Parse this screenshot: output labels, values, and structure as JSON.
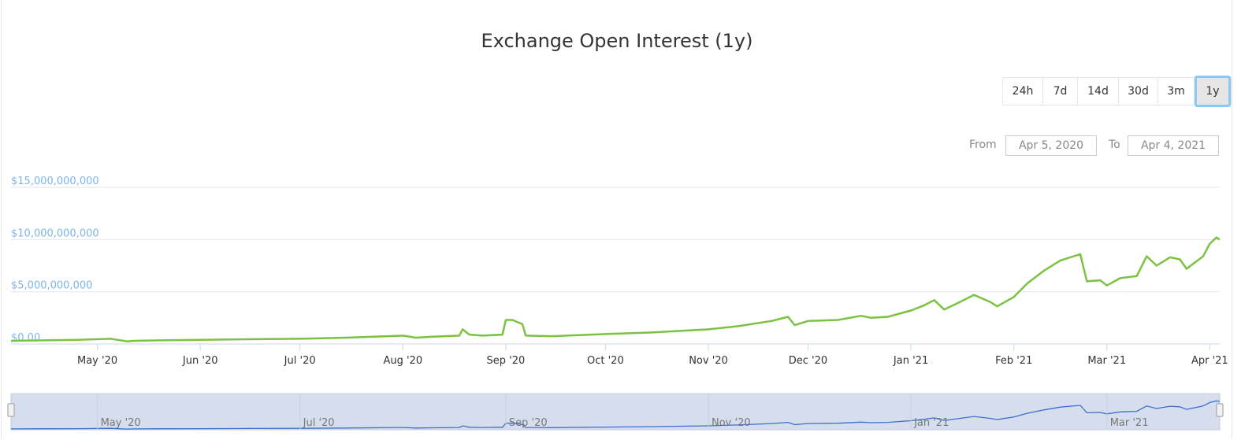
{
  "title": "Exchange Open Interest (1y)",
  "range_buttons": [
    {
      "label": "24h",
      "active": false
    },
    {
      "label": "7d",
      "active": false
    },
    {
      "label": "14d",
      "active": false
    },
    {
      "label": "30d",
      "active": false
    },
    {
      "label": "3m",
      "active": false
    },
    {
      "label": "1y",
      "active": true
    }
  ],
  "date_range": {
    "from_label": "From",
    "from_value": "Apr 5, 2020",
    "to_label": "To",
    "to_value": "Apr 4, 2021"
  },
  "colors": {
    "series_line": "#7cc242",
    "y_tick_text": "#7cb5ec",
    "navigator_line": "#3a6fcf",
    "navigator_fill": "#d6deee",
    "gridline": "#e6e6e6"
  },
  "chart_data": {
    "type": "line",
    "title": "Exchange Open Interest (1y)",
    "xlabel": "",
    "ylabel": "",
    "ylim": [
      0,
      15000000000
    ],
    "y_ticks": [
      {
        "value": 0,
        "label": "$0.00"
      },
      {
        "value": 5000000000,
        "label": "$5,000,000,000"
      },
      {
        "value": 10000000000,
        "label": "$10,000,000,000"
      },
      {
        "value": 15000000000,
        "label": "$15,000,000,000"
      }
    ],
    "x_range": [
      "2020-04-05",
      "2021-04-04"
    ],
    "x_ticks": [
      {
        "date": "2020-05-01",
        "label": "May '20"
      },
      {
        "date": "2020-06-01",
        "label": "Jun '20"
      },
      {
        "date": "2020-07-01",
        "label": "Jul '20"
      },
      {
        "date": "2020-08-01",
        "label": "Aug '20"
      },
      {
        "date": "2020-09-01",
        "label": "Sep '20"
      },
      {
        "date": "2020-10-01",
        "label": "Oct '20"
      },
      {
        "date": "2020-11-01",
        "label": "Nov '20"
      },
      {
        "date": "2020-12-01",
        "label": "Dec '20"
      },
      {
        "date": "2021-01-01",
        "label": "Jan '21"
      },
      {
        "date": "2021-02-01",
        "label": "Feb '21"
      },
      {
        "date": "2021-03-01",
        "label": "Mar '21"
      },
      {
        "date": "2021-04-01",
        "label": "Apr '21"
      }
    ],
    "navigator_ticks": [
      {
        "date": "2020-05-01",
        "label": "May '20"
      },
      {
        "date": "2020-07-01",
        "label": "Jul '20"
      },
      {
        "date": "2020-09-01",
        "label": "Sep '20"
      },
      {
        "date": "2020-11-01",
        "label": "Nov '20"
      },
      {
        "date": "2021-01-01",
        "label": "Jan '21"
      },
      {
        "date": "2021-03-01",
        "label": "Mar '21"
      }
    ],
    "grid": true,
    "legend": "none",
    "series": [
      {
        "x": [
          "2020-04-05",
          "2020-04-15",
          "2020-04-25",
          "2020-05-05",
          "2020-05-10",
          "2020-05-12",
          "2020-05-20",
          "2020-06-01",
          "2020-06-15",
          "2020-07-01",
          "2020-07-15",
          "2020-08-01",
          "2020-08-05",
          "2020-08-10",
          "2020-08-18",
          "2020-08-19",
          "2020-08-21",
          "2020-08-25",
          "2020-08-31",
          "2020-09-01",
          "2020-09-03",
          "2020-09-06",
          "2020-09-07",
          "2020-09-15",
          "2020-10-01",
          "2020-10-15",
          "2020-11-01",
          "2020-11-10",
          "2020-11-20",
          "2020-11-25",
          "2020-11-27",
          "2020-12-01",
          "2020-12-10",
          "2020-12-17",
          "2020-12-20",
          "2020-12-25",
          "2021-01-01",
          "2021-01-05",
          "2021-01-08",
          "2021-01-11",
          "2021-01-15",
          "2021-01-20",
          "2021-01-25",
          "2021-01-27",
          "2021-02-01",
          "2021-02-05",
          "2021-02-10",
          "2021-02-15",
          "2021-02-21",
          "2021-02-23",
          "2021-02-27",
          "2021-03-01",
          "2021-03-05",
          "2021-03-10",
          "2021-03-13",
          "2021-03-16",
          "2021-03-20",
          "2021-03-23",
          "2021-03-25",
          "2021-03-30",
          "2021-04-01",
          "2021-04-03",
          "2021-04-04"
        ],
        "y": [
          300000000,
          350000000,
          400000000,
          500000000,
          250000000,
          300000000,
          350000000,
          400000000,
          450000000,
          500000000,
          600000000,
          800000000,
          600000000,
          700000000,
          800000000,
          1400000000,
          900000000,
          800000000,
          900000000,
          2300000000,
          2300000000,
          1900000000,
          800000000,
          750000000,
          950000000,
          1100000000,
          1400000000,
          1700000000,
          2200000000,
          2600000000,
          1800000000,
          2200000000,
          2300000000,
          2700000000,
          2500000000,
          2600000000,
          3200000000,
          3700000000,
          4200000000,
          3300000000,
          3900000000,
          4700000000,
          4000000000,
          3600000000,
          4500000000,
          5800000000,
          7000000000,
          8000000000,
          8600000000,
          6000000000,
          6100000000,
          5600000000,
          6300000000,
          6500000000,
          8400000000,
          7500000000,
          8300000000,
          8100000000,
          7200000000,
          8400000000,
          9600000000,
          10200000000,
          10000000000
        ]
      }
    ]
  }
}
